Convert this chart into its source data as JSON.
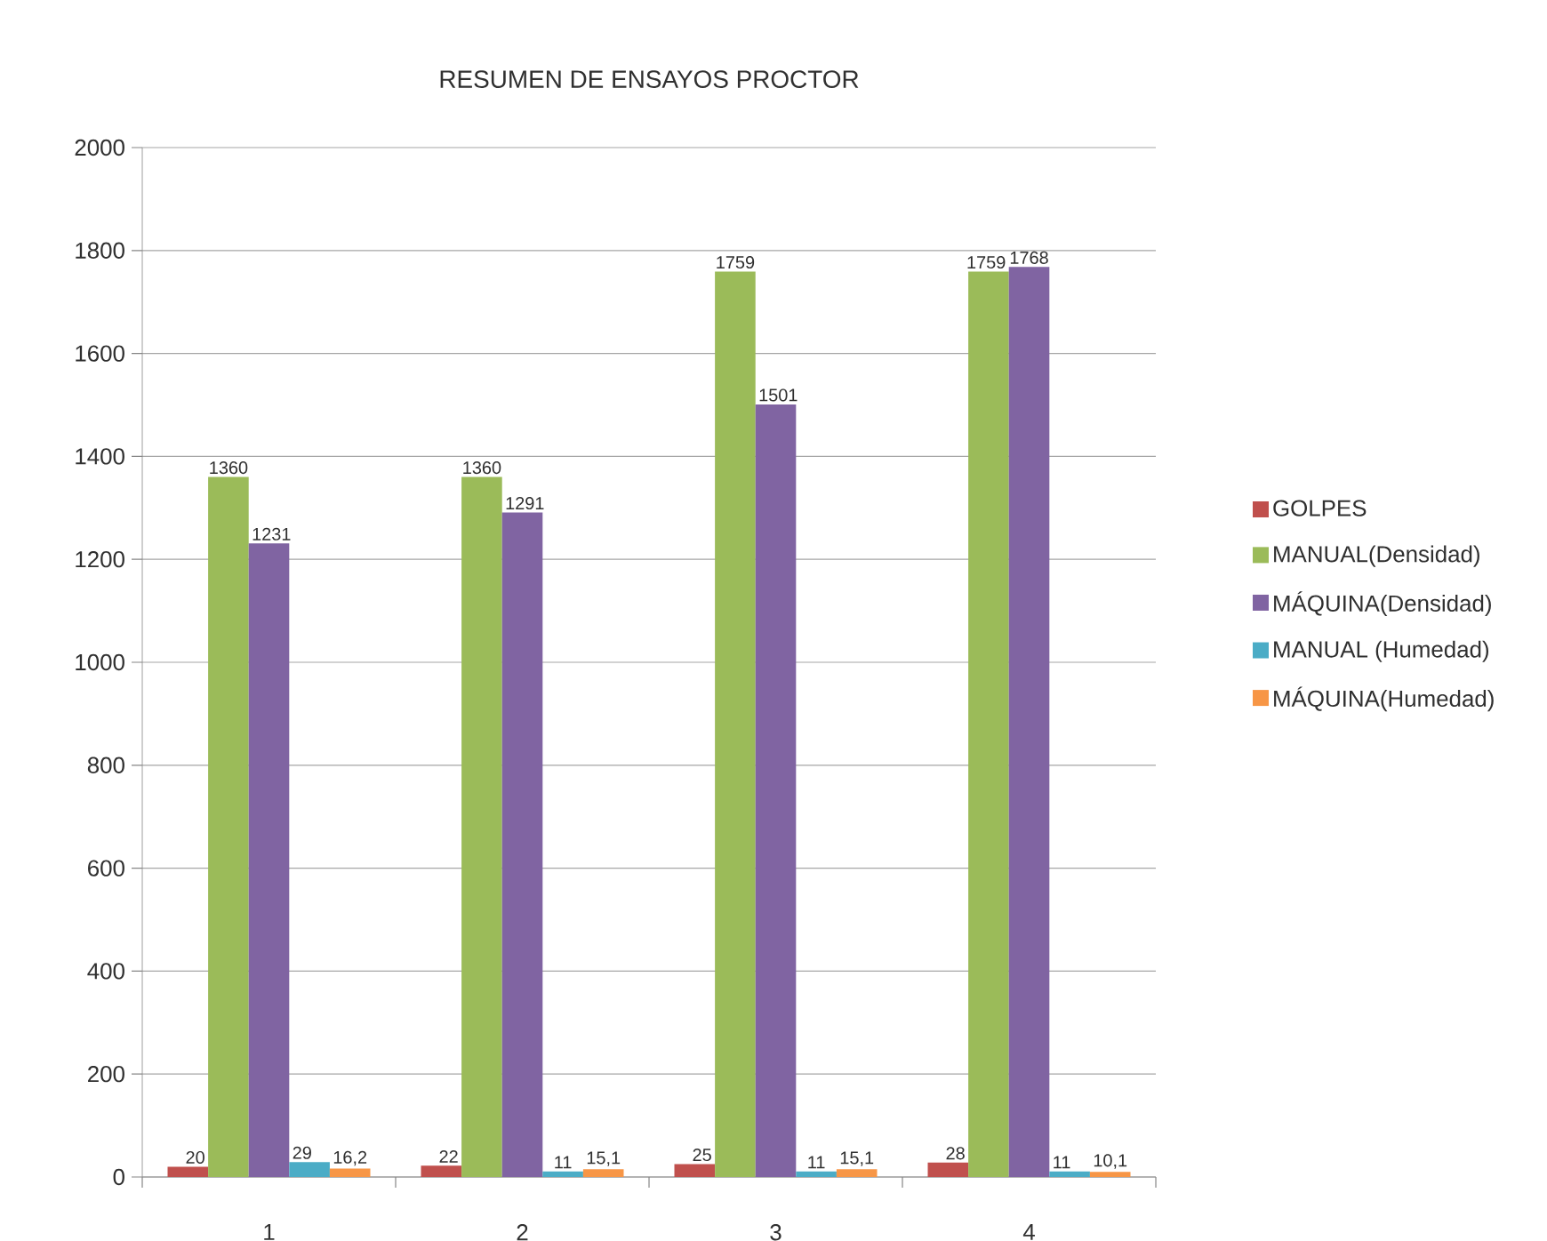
{
  "chart_data": {
    "type": "bar",
    "title": "RESUMEN DE ENSAYOS PROCTOR",
    "categories": [
      "1",
      "2",
      "3",
      "4"
    ],
    "series": [
      {
        "name": "GOLPES",
        "color": "#c0504d",
        "values": [
          20,
          22,
          25,
          28
        ],
        "value_labels": [
          "20",
          "22",
          "25",
          "28"
        ]
      },
      {
        "name": "MANUAL(Densidad)",
        "color": "#9bbb59",
        "values": [
          1360,
          1360,
          1759,
          1759
        ],
        "value_labels": [
          "1360",
          "1360",
          "1759",
          "1759"
        ]
      },
      {
        "name": "MÁQUINA(Densidad)",
        "color": "#8064a2",
        "values": [
          1231,
          1291,
          1501,
          1768
        ],
        "value_labels": [
          "1231",
          "1291",
          "1501",
          "1768"
        ]
      },
      {
        "name": "MANUAL (Humedad)",
        "color": "#4bacc6",
        "values": [
          29,
          11,
          11,
          11
        ],
        "value_labels": [
          "29",
          "11",
          "11",
          "11"
        ]
      },
      {
        "name": "MÁQUINA(Humedad)",
        "color": "#f79646",
        "values": [
          16.2,
          15.1,
          15.1,
          10.1
        ],
        "value_labels": [
          "16,2",
          "15,1",
          "15,1",
          "10,1"
        ]
      }
    ],
    "ylim": [
      0,
      2000
    ],
    "yticks": [
      0,
      200,
      400,
      600,
      800,
      1000,
      1200,
      1400,
      1600,
      1800,
      2000
    ],
    "grid": "y",
    "legend": "right"
  }
}
